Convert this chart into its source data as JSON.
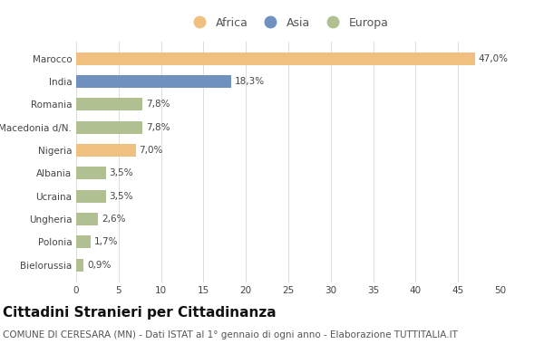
{
  "categories": [
    "Marocco",
    "India",
    "Romania",
    "Macedonia d/N.",
    "Nigeria",
    "Albania",
    "Ucraina",
    "Ungheria",
    "Polonia",
    "Bielorussia"
  ],
  "values": [
    47.0,
    18.3,
    7.8,
    7.8,
    7.0,
    3.5,
    3.5,
    2.6,
    1.7,
    0.9
  ],
  "labels": [
    "47,0%",
    "18,3%",
    "7,8%",
    "7,8%",
    "7,0%",
    "3,5%",
    "3,5%",
    "2,6%",
    "1,7%",
    "0,9%"
  ],
  "colors": [
    "#f0c080",
    "#7090c0",
    "#b0c090",
    "#b0c090",
    "#f0c080",
    "#b0c090",
    "#b0c090",
    "#b0c090",
    "#b0c090",
    "#b0c090"
  ],
  "legend_labels": [
    "Africa",
    "Asia",
    "Europa"
  ],
  "legend_colors": [
    "#f0c080",
    "#7090c0",
    "#b0c090"
  ],
  "title": "Cittadini Stranieri per Cittadinanza",
  "subtitle": "COMUNE DI CERESARA (MN) - Dati ISTAT al 1° gennaio di ogni anno - Elaborazione TUTTITALIA.IT",
  "xlim": [
    0,
    50
  ],
  "xticks": [
    0,
    5,
    10,
    15,
    20,
    25,
    30,
    35,
    40,
    45,
    50
  ],
  "background_color": "#ffffff",
  "bar_height": 0.55,
  "title_fontsize": 11,
  "subtitle_fontsize": 7.5,
  "label_fontsize": 7.5,
  "tick_fontsize": 7.5,
  "legend_fontsize": 9
}
